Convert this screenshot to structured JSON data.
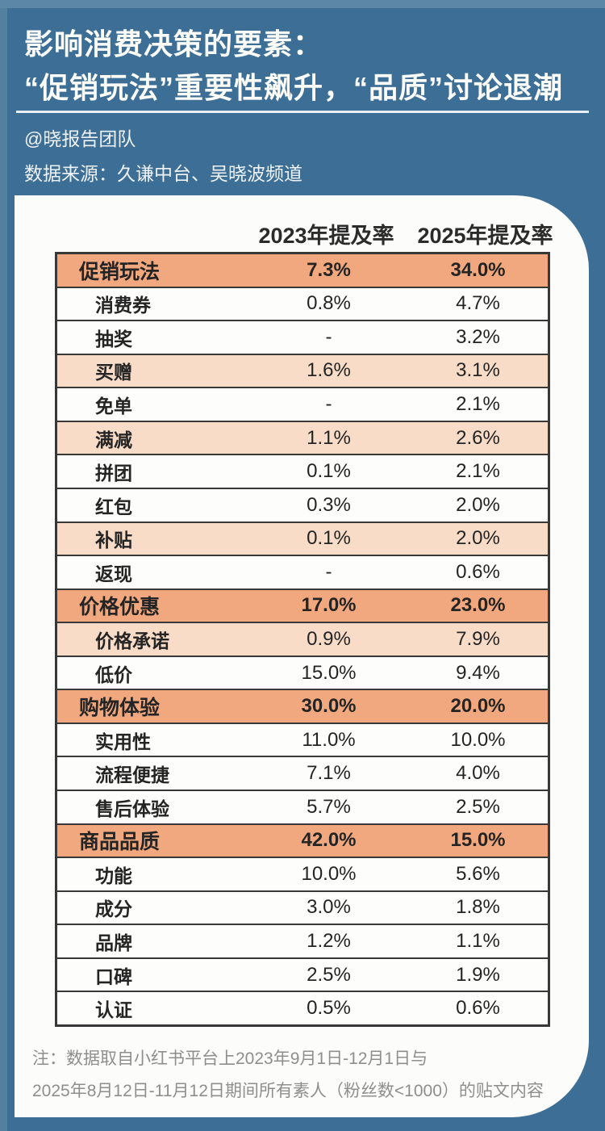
{
  "header": {
    "title_line1": "影响消费决策的要素：",
    "title_line2": "“促销玩法”重要性飙升，“品质”讨论退潮",
    "author": "@晓报告团队",
    "source": "数据来源：久谦中台、吴晓波频道"
  },
  "table": {
    "columns": [
      "2023年提及率",
      "2025年提及率"
    ],
    "rows": [
      {
        "label": "促销玩法",
        "v2023": "7.3%",
        "v2025": "34.0%",
        "type": "category"
      },
      {
        "label": "消费券",
        "v2023": "0.8%",
        "v2025": "4.7%",
        "type": "white"
      },
      {
        "label": "抽奖",
        "v2023": "-",
        "v2025": "3.2%",
        "type": "white"
      },
      {
        "label": "买赠",
        "v2023": "1.6%",
        "v2025": "3.1%",
        "type": "peach"
      },
      {
        "label": "免单",
        "v2023": "-",
        "v2025": "2.1%",
        "type": "white"
      },
      {
        "label": "满减",
        "v2023": "1.1%",
        "v2025": "2.6%",
        "type": "peach"
      },
      {
        "label": "拼团",
        "v2023": "0.1%",
        "v2025": "2.1%",
        "type": "white"
      },
      {
        "label": "红包",
        "v2023": "0.3%",
        "v2025": "2.0%",
        "type": "white"
      },
      {
        "label": "补贴",
        "v2023": "0.1%",
        "v2025": "2.0%",
        "type": "peach"
      },
      {
        "label": "返现",
        "v2023": "-",
        "v2025": "0.6%",
        "type": "white"
      },
      {
        "label": "价格优惠",
        "v2023": "17.0%",
        "v2025": "23.0%",
        "type": "category"
      },
      {
        "label": "价格承诺",
        "v2023": "0.9%",
        "v2025": "7.9%",
        "type": "peach"
      },
      {
        "label": "低价",
        "v2023": "15.0%",
        "v2025": "9.4%",
        "type": "white"
      },
      {
        "label": "购物体验",
        "v2023": "30.0%",
        "v2025": "20.0%",
        "type": "category"
      },
      {
        "label": "实用性",
        "v2023": "11.0%",
        "v2025": "10.0%",
        "type": "white"
      },
      {
        "label": "流程便捷",
        "v2023": "7.1%",
        "v2025": "4.0%",
        "type": "white"
      },
      {
        "label": "售后体验",
        "v2023": "5.7%",
        "v2025": "2.5%",
        "type": "white"
      },
      {
        "label": "商品品质",
        "v2023": "42.0%",
        "v2025": "15.0%",
        "type": "category"
      },
      {
        "label": "功能",
        "v2023": "10.0%",
        "v2025": "5.6%",
        "type": "white"
      },
      {
        "label": "成分",
        "v2023": "3.0%",
        "v2025": "1.8%",
        "type": "white"
      },
      {
        "label": "品牌",
        "v2023": "1.2%",
        "v2025": "1.1%",
        "type": "white"
      },
      {
        "label": "口碑",
        "v2023": "2.5%",
        "v2025": "1.9%",
        "type": "white"
      },
      {
        "label": "认证",
        "v2023": "0.5%",
        "v2025": "0.6%",
        "type": "white"
      }
    ]
  },
  "footnote": {
    "line1": "注：数据取自小红书平台上2023年9月1日-12月1日与",
    "line2": "2025年8月12日-11月12日期间所有素人（粉丝数<1000）的贴文内容"
  },
  "colors": {
    "background_blue": "#3D6E96",
    "card_white": "#FCFCFA",
    "category_orange": "#F2A87E",
    "subrow_peach": "#F8DCC7",
    "table_border": "#383838",
    "note_gray": "#8E8E8E"
  },
  "chart_data": {
    "type": "table",
    "title": "影响消费决策的要素：“促销玩法”重要性飙升，“品质”讨论退潮",
    "categories": [
      "促销玩法",
      "消费券",
      "抽奖",
      "买赠",
      "免单",
      "满减",
      "拼团",
      "红包",
      "补贴",
      "返现",
      "价格优惠",
      "价格承诺",
      "低价",
      "购物体验",
      "实用性",
      "流程便捷",
      "售后体验",
      "商品品质",
      "功能",
      "成分",
      "品牌",
      "口碑",
      "认证"
    ],
    "group_headers": [
      "促销玩法",
      "价格优惠",
      "购物体验",
      "商品品质"
    ],
    "series": [
      {
        "name": "2023年提及率",
        "values": [
          7.3,
          0.8,
          null,
          1.6,
          null,
          1.1,
          0.1,
          0.3,
          0.1,
          null,
          17.0,
          0.9,
          15.0,
          30.0,
          11.0,
          7.1,
          5.7,
          42.0,
          10.0,
          3.0,
          1.2,
          2.5,
          0.5
        ]
      },
      {
        "name": "2025年提及率",
        "values": [
          34.0,
          4.7,
          3.2,
          3.1,
          2.1,
          2.6,
          2.1,
          2.0,
          2.0,
          0.6,
          23.0,
          7.9,
          9.4,
          20.0,
          10.0,
          4.0,
          2.5,
          15.0,
          5.6,
          1.8,
          1.1,
          1.9,
          0.6
        ]
      }
    ],
    "unit": "%"
  }
}
